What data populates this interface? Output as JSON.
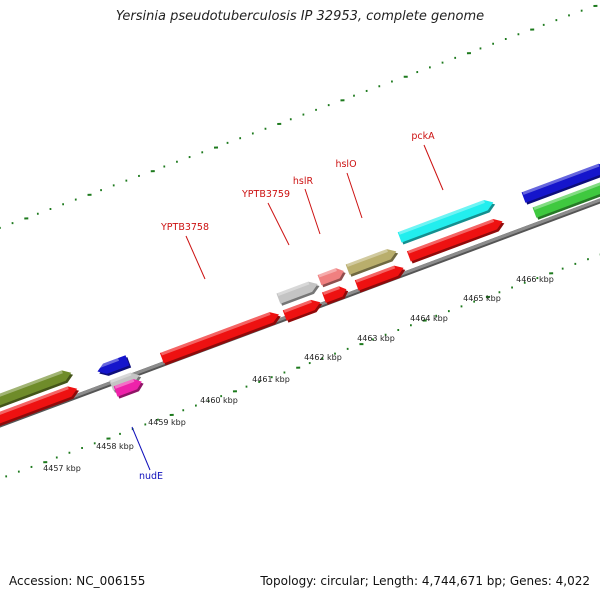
{
  "title": "Yersinia pseudotuberculosis IP 32953, complete genome",
  "accession": "Accession: NC_006155",
  "topology": "Topology: circular; Length: 4,744,671 bp; Genes: 4,022",
  "colors": {
    "backbone": "#8c8c8c",
    "ticks": "#1d7a1d",
    "gene_label_red": "#cc1111",
    "gene_label_blue": "#1111bb",
    "red": "#ee1111",
    "cyan": "#22eeee",
    "khaki": "#b9ae6c",
    "light_red": "#f08080",
    "gray": "#c4c4c4",
    "olive": "#6f8c2a",
    "blue": "#1515cc",
    "green": "#3fc93f",
    "magenta": "#ee22aa"
  },
  "scale": {
    "unit": "kbp",
    "labels": [
      "4457 kbp",
      "4458 kbp",
      "4459 kbp",
      "4460 kbp",
      "4461 kbp",
      "4462 kbp",
      "4463 kbp",
      "4464 kbp",
      "4465 kbp",
      "4466 kbp"
    ]
  },
  "gene_labels": [
    {
      "name": "YPTB3758",
      "color": "gene_label_red"
    },
    {
      "name": "YPTB3759",
      "color": "gene_label_red"
    },
    {
      "name": "hslR",
      "color": "gene_label_red"
    },
    {
      "name": "hslO",
      "color": "gene_label_red"
    },
    {
      "name": "pckA",
      "color": "gene_label_red"
    },
    {
      "name": "nudE",
      "color": "gene_label_blue"
    }
  ]
}
